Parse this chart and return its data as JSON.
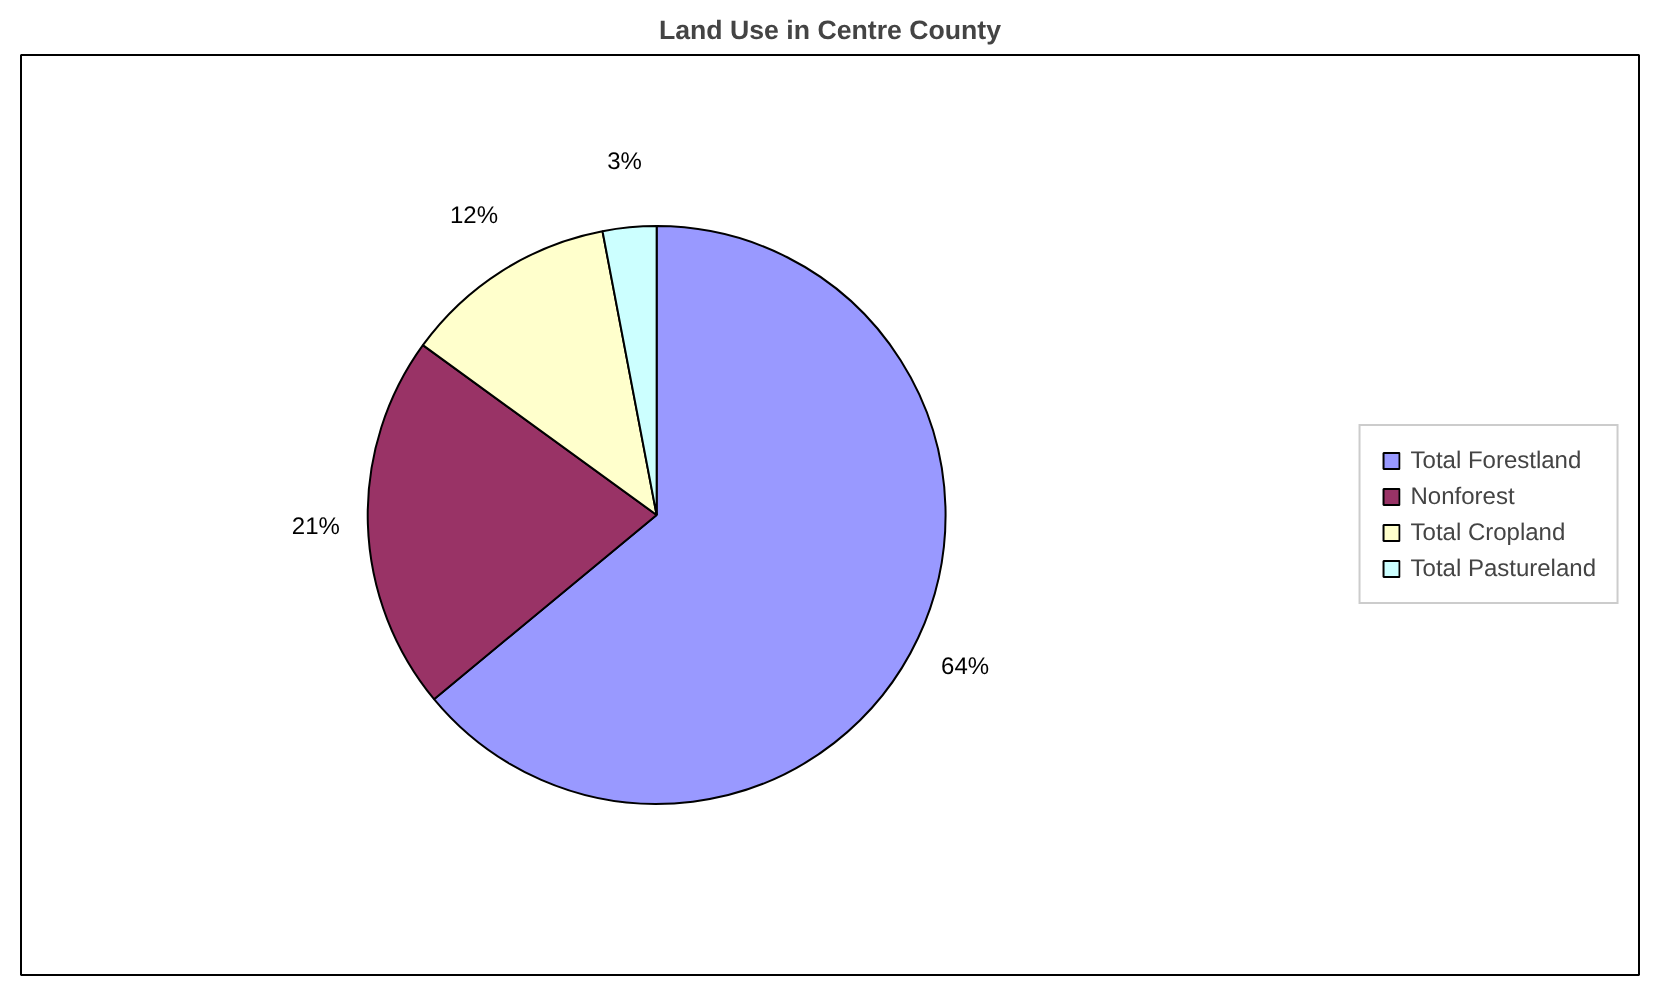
{
  "chart_data": {
    "type": "pie",
    "title": "Land Use in Centre County",
    "categories": [
      "Total Forestland",
      "Nonforest",
      "Total Cropland",
      "Total Pastureland"
    ],
    "values": [
      64,
      21,
      12,
      3
    ],
    "colors": [
      "#9999ff",
      "#993366",
      "#ffffcc",
      "#ccffff"
    ],
    "value_labels": [
      "64%",
      "21%",
      "12%",
      "3%"
    ],
    "legend": "right"
  }
}
